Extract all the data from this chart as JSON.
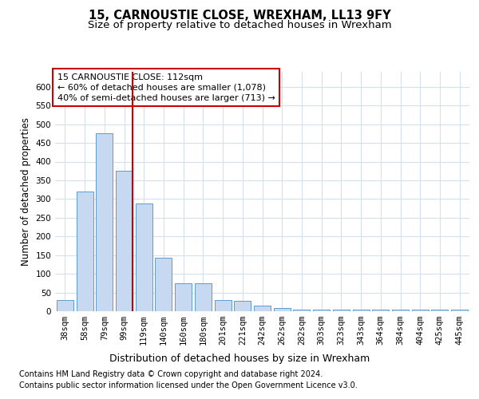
{
  "title": "15, CARNOUSTIE CLOSE, WREXHAM, LL13 9FY",
  "subtitle": "Size of property relative to detached houses in Wrexham",
  "xlabel": "Distribution of detached houses by size in Wrexham",
  "ylabel": "Number of detached properties",
  "categories": [
    "38sqm",
    "58sqm",
    "79sqm",
    "99sqm",
    "119sqm",
    "140sqm",
    "160sqm",
    "180sqm",
    "201sqm",
    "221sqm",
    "242sqm",
    "262sqm",
    "282sqm",
    "303sqm",
    "323sqm",
    "343sqm",
    "364sqm",
    "384sqm",
    "404sqm",
    "425sqm",
    "445sqm"
  ],
  "values": [
    30,
    320,
    475,
    375,
    288,
    143,
    75,
    75,
    30,
    28,
    15,
    8,
    5,
    5,
    5,
    5,
    5,
    5,
    5,
    5,
    5
  ],
  "bar_color": "#c6d9f0",
  "bar_edge_color": "#5b9bd5",
  "vline_color": "#cc0000",
  "vline_x_index": 3,
  "annotation_line1": "15 CARNOUSTIE CLOSE: 112sqm",
  "annotation_line2": "← 60% of detached houses are smaller (1,078)",
  "annotation_line3": "40% of semi-detached houses are larger (713) →",
  "annotation_box_color": "#cc0000",
  "ylim": [
    0,
    640
  ],
  "yticks": [
    0,
    50,
    100,
    150,
    200,
    250,
    300,
    350,
    400,
    450,
    500,
    550,
    600
  ],
  "footer_line1": "Contains HM Land Registry data © Crown copyright and database right 2024.",
  "footer_line2": "Contains public sector information licensed under the Open Government Licence v3.0.",
  "background_color": "#ffffff",
  "grid_color": "#d4dff0",
  "title_fontsize": 10.5,
  "subtitle_fontsize": 9.5,
  "xlabel_fontsize": 9,
  "ylabel_fontsize": 8.5,
  "tick_fontsize": 7.5,
  "annotation_fontsize": 8,
  "footer_fontsize": 7
}
